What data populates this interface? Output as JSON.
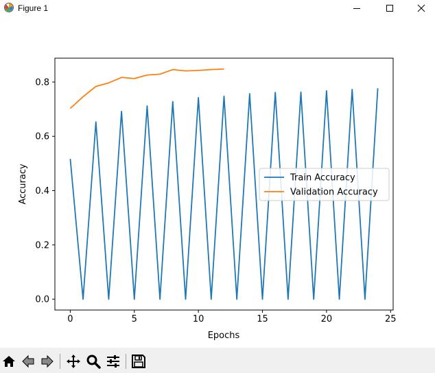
{
  "window": {
    "title": "Figure 1",
    "icon": "matplotlib-figure-icon",
    "controls": [
      "minimize-icon",
      "maximize-icon",
      "close-icon"
    ]
  },
  "toolbar": {
    "tools": [
      {
        "name": "home",
        "icon": "home-icon"
      },
      {
        "name": "back",
        "icon": "back-arrow-icon"
      },
      {
        "name": "forward",
        "icon": "forward-arrow-icon"
      },
      {
        "name": "pan",
        "icon": "move-icon"
      },
      {
        "name": "zoom",
        "icon": "zoom-icon"
      },
      {
        "name": "configure-subplots",
        "icon": "sliders-icon"
      },
      {
        "name": "save",
        "icon": "save-icon"
      }
    ]
  },
  "chart_data": {
    "type": "line",
    "title": "",
    "xlabel": "Epochs",
    "ylabel": "Accuracy",
    "xlim": [
      -1.2,
      25.2
    ],
    "ylim": [
      -0.04,
      0.888
    ],
    "xticks": [
      0,
      5,
      10,
      15,
      20,
      25
    ],
    "yticks": [
      0.0,
      0.2,
      0.4,
      0.6,
      0.8
    ],
    "xtick_labels": [
      "0",
      "5",
      "10",
      "15",
      "20",
      "25"
    ],
    "ytick_labels": [
      "0.0",
      "0.2",
      "0.4",
      "0.6",
      "0.8"
    ],
    "grid": false,
    "legend_position": "center-right",
    "series": [
      {
        "name": "Train Accuracy",
        "color": "#1f77b4",
        "x": [
          0,
          1,
          2,
          3,
          4,
          5,
          6,
          7,
          8,
          9,
          10,
          11,
          12,
          13,
          14,
          15,
          16,
          17,
          18,
          19,
          20,
          21,
          22,
          23,
          24
        ],
        "values": [
          0.517,
          0.0,
          0.653,
          0.0,
          0.692,
          0.0,
          0.712,
          0.0,
          0.728,
          0.0,
          0.743,
          0.0,
          0.748,
          0.0,
          0.757,
          0.0,
          0.762,
          0.0,
          0.763,
          0.0,
          0.768,
          0.0,
          0.773,
          0.0,
          0.777
        ]
      },
      {
        "name": "Validation Accuracy",
        "color": "#ff7f0e",
        "x": [
          0,
          1,
          2,
          3,
          4,
          5,
          6,
          7,
          8,
          9,
          10,
          11,
          12
        ],
        "values": [
          0.703,
          0.746,
          0.784,
          0.797,
          0.817,
          0.813,
          0.826,
          0.829,
          0.846,
          0.841,
          0.843,
          0.846,
          0.848
        ]
      }
    ]
  }
}
